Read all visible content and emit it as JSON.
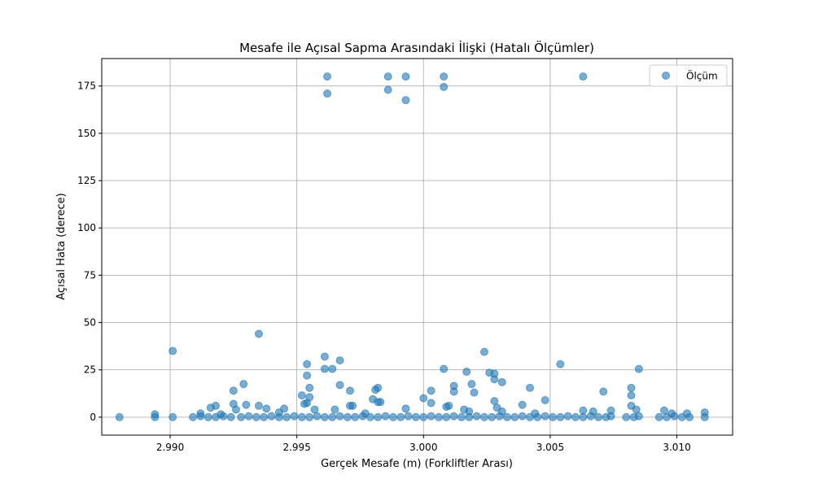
{
  "chart_data": {
    "type": "scatter",
    "title": "Mesafe ile Açısal Sapma Arasındaki İlişki (Hatalı Ölçümler)",
    "xlabel": "Gerçek Mesafe (m) (Forkliftler Arası)",
    "ylabel": "Açısal Hata (derece)",
    "xlim": [
      2.9873,
      3.0122
    ],
    "ylim": [
      -9.5,
      189.5
    ],
    "xticks": [
      2.99,
      2.995,
      3.0,
      3.005,
      3.01
    ],
    "xtick_labels": [
      "2.990",
      "2.995",
      "3.000",
      "3.005",
      "3.010"
    ],
    "yticks": [
      0,
      25,
      50,
      75,
      100,
      125,
      150,
      175
    ],
    "ytick_labels": [
      "0",
      "25",
      "50",
      "75",
      "100",
      "125",
      "150",
      "175"
    ],
    "grid": true,
    "legend_position": "top-right",
    "color": "#1f77b4",
    "series": [
      {
        "name": "Ölçüm",
        "points": [
          [
            2.9962,
            180
          ],
          [
            2.9962,
            171
          ],
          [
            2.9986,
            180
          ],
          [
            2.9986,
            173
          ],
          [
            2.9993,
            180
          ],
          [
            2.9993,
            167.5
          ],
          [
            3.0008,
            180
          ],
          [
            3.0008,
            174.5
          ],
          [
            3.0063,
            180
          ],
          [
            2.9935,
            44
          ],
          [
            2.9901,
            35
          ],
          [
            3.0024,
            34.5
          ],
          [
            2.9961,
            32
          ],
          [
            2.9967,
            30
          ],
          [
            2.9954,
            28
          ],
          [
            2.9954,
            22
          ],
          [
            2.9961,
            25.5
          ],
          [
            2.9964,
            25.5
          ],
          [
            3.0008,
            25.5
          ],
          [
            3.0017,
            24
          ],
          [
            3.0026,
            23.5
          ],
          [
            3.0028,
            23
          ],
          [
            3.0028,
            20
          ],
          [
            3.0031,
            18.5
          ],
          [
            3.0019,
            17.5
          ],
          [
            2.9929,
            17.5
          ],
          [
            2.9967,
            17
          ],
          [
            3.0012,
            16.5
          ],
          [
            2.9955,
            15.5
          ],
          [
            2.9982,
            15.5
          ],
          [
            2.9981,
            14.5
          ],
          [
            3.0042,
            15.5
          ],
          [
            3.0054,
            28
          ],
          [
            3.0085,
            25.5
          ],
          [
            3.0082,
            15.5
          ],
          [
            3.0082,
            11.5
          ],
          [
            2.9925,
            14
          ],
          [
            2.9971,
            14
          ],
          [
            3.0003,
            14
          ],
          [
            3.0071,
            13.5
          ],
          [
            3.0012,
            13.5
          ],
          [
            3.002,
            13
          ],
          [
            2.9952,
            11.5
          ],
          [
            2.9955,
            10.5
          ],
          [
            3.0,
            10
          ],
          [
            2.998,
            9.5
          ],
          [
            3.0048,
            9
          ],
          [
            2.9982,
            8
          ],
          [
            2.9983,
            8
          ],
          [
            3.0028,
            8.5
          ],
          [
            3.0003,
            7.5
          ],
          [
            2.9954,
            7.5
          ],
          [
            2.9953,
            7
          ],
          [
            2.9925,
            7
          ],
          [
            2.993,
            6.5
          ],
          [
            2.9935,
            6
          ],
          [
            2.9971,
            6
          ],
          [
            2.9972,
            6
          ],
          [
            2.9918,
            6
          ],
          [
            3.0039,
            6.5
          ],
          [
            3.0082,
            6
          ],
          [
            2.9916,
            5
          ],
          [
            3.0029,
            5
          ],
          [
            3.0009,
            5.5
          ],
          [
            3.001,
            6
          ],
          [
            2.9993,
            4.5
          ],
          [
            3.0016,
            4
          ],
          [
            2.9938,
            4.5
          ],
          [
            2.9945,
            4.5
          ],
          [
            2.9926,
            4
          ],
          [
            2.9957,
            4
          ],
          [
            2.9965,
            4
          ],
          [
            3.0063,
            3.5
          ],
          [
            3.0074,
            3.5
          ],
          [
            3.0084,
            4
          ],
          [
            3.0095,
            3.5
          ],
          [
            3.0018,
            3
          ],
          [
            3.0031,
            3
          ],
          [
            3.0067,
            3
          ],
          [
            3.0111,
            2.5
          ],
          [
            2.9894,
            1.5
          ],
          [
            2.9912,
            2
          ],
          [
            2.992,
            1.5
          ],
          [
            2.9943,
            2.5
          ],
          [
            2.9977,
            2
          ],
          [
            3.0044,
            2
          ],
          [
            3.0098,
            2
          ],
          [
            3.0104,
            2
          ],
          [
            2.988,
            0
          ],
          [
            2.9894,
            0
          ],
          [
            2.9901,
            0
          ],
          [
            2.9909,
            0
          ],
          [
            2.9912,
            0.5
          ],
          [
            2.9915,
            0
          ],
          [
            2.9918,
            0
          ],
          [
            2.9921,
            0.5
          ],
          [
            2.9924,
            0
          ],
          [
            2.9928,
            0
          ],
          [
            2.9931,
            0.5
          ],
          [
            2.9934,
            0
          ],
          [
            2.9937,
            0
          ],
          [
            2.994,
            0.5
          ],
          [
            2.9943,
            0
          ],
          [
            2.9946,
            0
          ],
          [
            2.9949,
            0.5
          ],
          [
            2.9952,
            0
          ],
          [
            2.9955,
            0
          ],
          [
            2.9958,
            0.5
          ],
          [
            2.9961,
            0
          ],
          [
            2.9964,
            0
          ],
          [
            2.9967,
            0.5
          ],
          [
            2.997,
            0
          ],
          [
            2.9973,
            0
          ],
          [
            2.9976,
            0.5
          ],
          [
            2.9979,
            0
          ],
          [
            2.9982,
            0
          ],
          [
            2.9985,
            0.5
          ],
          [
            2.9988,
            0
          ],
          [
            2.9991,
            0
          ],
          [
            2.9994,
            0.5
          ],
          [
            2.9997,
            0
          ],
          [
            3.0,
            0
          ],
          [
            3.0003,
            0.5
          ],
          [
            3.0006,
            0
          ],
          [
            3.0009,
            0
          ],
          [
            3.0012,
            0.5
          ],
          [
            3.0015,
            0
          ],
          [
            3.0018,
            0
          ],
          [
            3.0021,
            0.5
          ],
          [
            3.0024,
            0
          ],
          [
            3.0027,
            0
          ],
          [
            3.003,
            0.5
          ],
          [
            3.0033,
            0
          ],
          [
            3.0036,
            0
          ],
          [
            3.0039,
            0.5
          ],
          [
            3.0042,
            0
          ],
          [
            3.0045,
            0
          ],
          [
            3.0048,
            0.5
          ],
          [
            3.0051,
            0
          ],
          [
            3.0054,
            0
          ],
          [
            3.0057,
            0.5
          ],
          [
            3.006,
            0
          ],
          [
            3.0063,
            0
          ],
          [
            3.0066,
            0.5
          ],
          [
            3.0069,
            0
          ],
          [
            3.0072,
            0
          ],
          [
            3.0074,
            0.5
          ],
          [
            3.008,
            0
          ],
          [
            3.0083,
            0
          ],
          [
            3.0085,
            0.5
          ],
          [
            3.0093,
            0
          ],
          [
            3.0096,
            0
          ],
          [
            3.0099,
            0.5
          ],
          [
            3.0102,
            0
          ],
          [
            3.0105,
            0
          ],
          [
            3.0111,
            0
          ]
        ]
      }
    ]
  }
}
